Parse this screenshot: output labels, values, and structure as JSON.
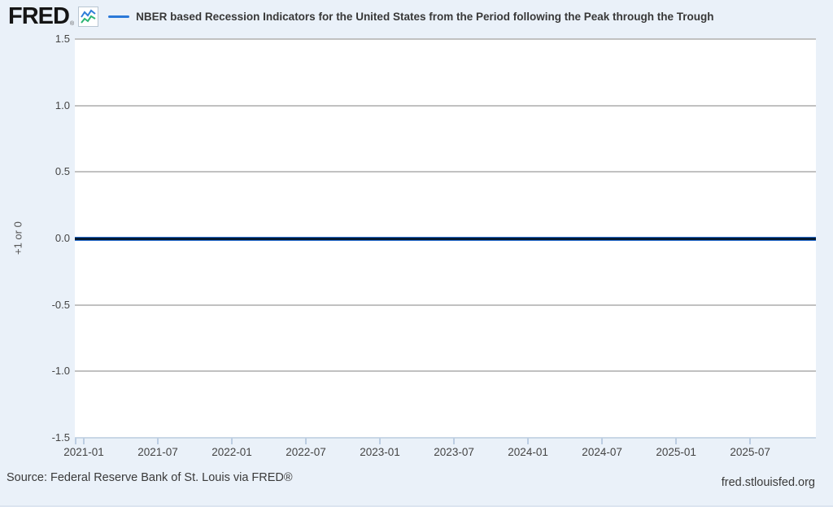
{
  "header": {
    "logo_text": "FRED",
    "registered_mark": "®",
    "series_title": "NBER based Recession Indicators for the United States from the Period following the Peak through the Trough"
  },
  "chart_data": {
    "type": "line",
    "title": "NBER based Recession Indicators for the United States from the Period following the Peak through the Trough",
    "xlabel": "",
    "ylabel": "+1 or 0",
    "ylim": [
      -1.5,
      1.5
    ],
    "y_tick_labels": [
      "1.5",
      "1.0",
      "0.5",
      "0.0",
      "-0.5",
      "-1.0",
      "-1.5"
    ],
    "x_tick_labels": [
      "2021-01",
      "2021-07",
      "2022-01",
      "2022-07",
      "2023-01",
      "2023-07",
      "2024-01",
      "2024-07",
      "2025-01",
      "2025-07"
    ],
    "grid": true,
    "legend_position": "top-left",
    "series": [
      {
        "name": "NBER based Recession Indicators for the United States from the Period following the Peak through the Trough",
        "frequency": "monthly",
        "start": "2021-01",
        "end": "2025-12",
        "constant_value": 0,
        "legend_color": "#2b79d8",
        "line_color": "#001a33",
        "line_halo_color": "#2b6fd0"
      }
    ]
  },
  "footer": {
    "source": "Source: Federal Reserve Bank of St. Louis via FRED®",
    "site": "fred.stlouisfed.org"
  },
  "colors": {
    "page_background": "#eaf1f9",
    "plot_background": "#ffffff",
    "gridline": "#c1c1c1",
    "axis_line": "#c9d7e6",
    "accent_blue": "#2b79d8"
  },
  "icons": {
    "fred_chart_icon": "line-chart-icon"
  }
}
